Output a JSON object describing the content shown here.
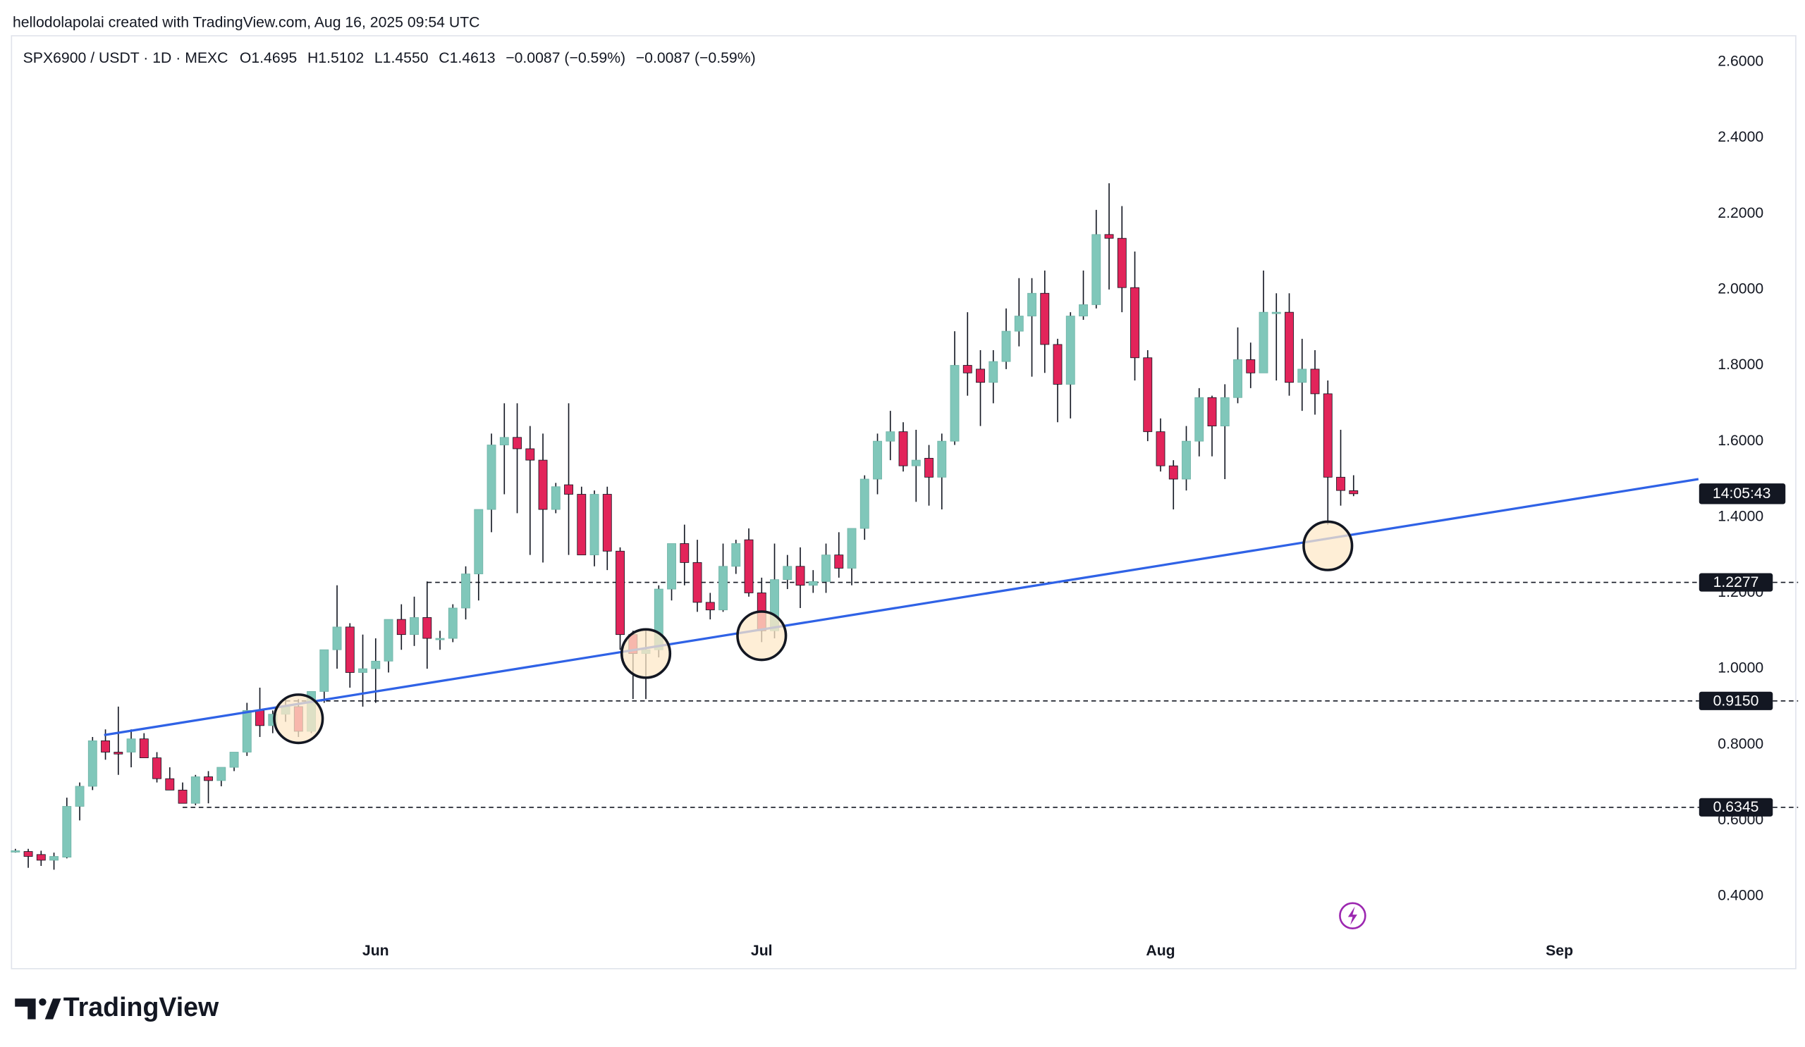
{
  "attribution": "hellodolapolai created with TradingView.com, Aug 16, 2025 09:54 UTC",
  "brand": "TradingView",
  "chart_data": {
    "type": "candlestick",
    "title": "SPX6900 / USDT · 1D · MEXC",
    "legend": [
      "O1.4695",
      "H1.5102",
      "L1.4550",
      "C1.4613",
      "−0.0087 (−0.59%)",
      "−0.0087 (−0.59%)"
    ],
    "up_color": "#80c7ba",
    "down_color": "#e2245a",
    "categories": [
      null,
      null,
      null,
      null,
      null,
      null,
      null,
      null,
      null,
      null,
      null,
      null,
      null,
      null,
      null,
      null,
      null,
      null,
      null,
      null,
      null,
      null,
      null,
      null,
      null,
      null,
      null,
      null,
      null,
      null,
      null,
      null,
      null,
      null,
      null,
      null,
      null,
      null,
      null,
      null,
      null,
      null,
      null,
      null,
      null,
      null,
      null,
      null,
      null,
      null,
      null,
      null,
      null,
      null,
      null,
      null,
      null,
      null,
      null,
      null,
      null,
      null,
      null,
      null,
      null,
      null,
      null,
      null,
      null,
      null,
      null,
      null,
      null,
      null,
      null,
      null,
      null,
      null,
      null,
      null,
      null,
      null,
      null,
      null,
      null,
      null,
      null,
      null,
      null,
      null,
      null,
      null,
      null,
      null,
      null,
      null,
      null,
      null,
      null,
      null,
      null,
      null,
      null,
      null,
      null
    ],
    "open": [
      0.52,
      0.518,
      0.51,
      0.495,
      0.503,
      0.637,
      0.69,
      0.81,
      0.78,
      0.78,
      0.815,
      0.765,
      0.71,
      0.68,
      0.645,
      0.715,
      0.705,
      0.74,
      0.78,
      0.89,
      0.85,
      0.88,
      0.9,
      0.835,
      0.94,
      1.05,
      1.11,
      0.99,
      1.0,
      1.02,
      1.13,
      1.09,
      1.135,
      1.08,
      1.08,
      1.16,
      1.25,
      1.42,
      1.59,
      1.61,
      1.58,
      1.55,
      1.42,
      1.485,
      1.46,
      1.3,
      1.46,
      1.31,
      1.09,
      1.04,
      1.05,
      1.21,
      1.33,
      1.28,
      1.175,
      1.155,
      1.27,
      1.34,
      1.2,
      1.1,
      1.235,
      1.27,
      1.22,
      1.23,
      1.3,
      1.265,
      1.37,
      1.5,
      1.6,
      1.625,
      1.535,
      1.555,
      1.505,
      1.6,
      1.8,
      1.79,
      1.755,
      1.81,
      1.89,
      1.93,
      1.99,
      1.855,
      1.75,
      1.93,
      1.96,
      2.145,
      2.135,
      2.005,
      1.82,
      1.625,
      1.535,
      1.5,
      1.6,
      1.715,
      1.64,
      1.715,
      1.815,
      1.78,
      1.94,
      1.94,
      1.755,
      1.79,
      1.725,
      1.505,
      1.4695
    ],
    "high": [
      0.525,
      0.525,
      0.52,
      0.515,
      0.66,
      0.7,
      0.82,
      0.84,
      0.9,
      0.84,
      0.83,
      0.78,
      0.74,
      0.7,
      0.72,
      0.73,
      0.74,
      0.78,
      0.91,
      0.95,
      0.89,
      0.92,
      0.92,
      0.94,
      1.05,
      1.22,
      1.12,
      1.09,
      1.08,
      1.12,
      1.17,
      1.19,
      1.23,
      1.1,
      1.17,
      1.27,
      1.42,
      1.62,
      1.7,
      1.7,
      1.64,
      1.62,
      1.49,
      1.7,
      1.48,
      1.47,
      1.48,
      1.32,
      1.1,
      1.1,
      1.22,
      1.33,
      1.38,
      1.34,
      1.2,
      1.33,
      1.34,
      1.37,
      1.24,
      1.33,
      1.3,
      1.32,
      1.26,
      1.33,
      1.36,
      1.37,
      1.51,
      1.62,
      1.68,
      1.65,
      1.63,
      1.59,
      1.62,
      1.89,
      1.94,
      1.84,
      1.84,
      1.95,
      2.03,
      2.03,
      2.05,
      1.87,
      1.94,
      2.05,
      2.21,
      2.28,
      2.22,
      2.1,
      1.84,
      1.66,
      1.55,
      1.64,
      1.74,
      1.72,
      1.75,
      1.9,
      1.86,
      2.05,
      1.99,
      1.99,
      1.87,
      1.84,
      1.76,
      1.63,
      1.5102
    ],
    "low": [
      0.515,
      0.475,
      0.48,
      0.47,
      0.5,
      0.6,
      0.68,
      0.76,
      0.72,
      0.74,
      0.77,
      0.7,
      0.68,
      0.645,
      0.64,
      0.645,
      0.69,
      0.73,
      0.77,
      0.82,
      0.83,
      0.86,
      0.82,
      0.83,
      0.91,
      1.0,
      0.95,
      0.9,
      0.91,
      0.99,
      1.05,
      1.06,
      1.0,
      1.05,
      1.07,
      1.13,
      1.18,
      1.36,
      1.46,
      1.41,
      1.3,
      1.28,
      1.41,
      1.3,
      1.31,
      1.27,
      1.26,
      1.05,
      0.92,
      0.92,
      1.03,
      1.18,
      1.22,
      1.15,
      1.13,
      1.15,
      1.25,
      1.19,
      1.07,
      1.08,
      1.21,
      1.16,
      1.2,
      1.2,
      1.24,
      1.22,
      1.34,
      1.46,
      1.55,
      1.52,
      1.44,
      1.43,
      1.42,
      1.59,
      1.72,
      1.64,
      1.7,
      1.79,
      1.85,
      1.77,
      1.78,
      1.65,
      1.66,
      1.92,
      1.95,
      2.0,
      1.94,
      1.76,
      1.6,
      1.52,
      1.42,
      1.47,
      1.56,
      1.56,
      1.5,
      1.7,
      1.74,
      1.78,
      1.76,
      1.72,
      1.68,
      1.67,
      1.38,
      1.43,
      1.455
    ],
    "close": [
      0.52,
      0.505,
      0.495,
      0.505,
      0.637,
      0.69,
      0.81,
      0.78,
      0.775,
      0.815,
      0.765,
      0.71,
      0.68,
      0.645,
      0.715,
      0.705,
      0.74,
      0.78,
      0.89,
      0.85,
      0.88,
      0.9,
      0.835,
      0.94,
      1.05,
      1.11,
      0.99,
      1.0,
      1.02,
      1.13,
      1.09,
      1.135,
      1.08,
      1.08,
      1.16,
      1.25,
      1.42,
      1.59,
      1.61,
      1.58,
      1.55,
      1.42,
      1.48,
      1.46,
      1.3,
      1.46,
      1.31,
      1.09,
      1.04,
      1.05,
      1.21,
      1.33,
      1.28,
      1.175,
      1.155,
      1.27,
      1.33,
      1.2,
      1.1,
      1.235,
      1.27,
      1.22,
      1.23,
      1.3,
      1.265,
      1.37,
      1.5,
      1.6,
      1.625,
      1.535,
      1.55,
      1.505,
      1.6,
      1.8,
      1.78,
      1.755,
      1.81,
      1.89,
      1.93,
      1.99,
      1.855,
      1.75,
      1.93,
      1.96,
      2.145,
      2.135,
      2.005,
      1.82,
      1.625,
      1.535,
      1.5,
      1.6,
      1.715,
      1.64,
      1.715,
      1.815,
      1.78,
      1.94,
      1.94,
      1.755,
      1.79,
      1.725,
      1.505,
      1.47,
      1.4613
    ],
    "xlim": [
      -0.3,
      129.6
    ],
    "ylim": [
      0.3,
      2.66
    ],
    "xticks": [
      {
        "value": 28,
        "label": "Jun"
      },
      {
        "value": 58,
        "label": "Jul"
      },
      {
        "value": 89,
        "label": "Aug"
      },
      {
        "value": 120,
        "label": "Sep"
      }
    ],
    "yticks": [
      {
        "value": 0.4,
        "label": "0.4000"
      },
      {
        "value": 0.6,
        "label": "0.6000"
      },
      {
        "value": 0.8,
        "label": "0.8000"
      },
      {
        "value": 1.0,
        "label": "1.0000"
      },
      {
        "value": 1.2,
        "label": "1.2000"
      },
      {
        "value": 1.4,
        "label": "1.4000"
      },
      {
        "value": 1.6,
        "label": "1.6000"
      },
      {
        "value": 1.8,
        "label": "1.8000"
      },
      {
        "value": 2.0,
        "label": "2.0000"
      },
      {
        "value": 2.2,
        "label": "2.2000"
      },
      {
        "value": 2.4,
        "label": "2.4000"
      },
      {
        "value": 2.6,
        "label": "2.6000"
      }
    ],
    "grid": false,
    "trendline": {
      "color": "#2f62e6",
      "x": [
        6.9,
        130.8
      ],
      "y": [
        0.825,
        1.5
      ]
    },
    "levels": [
      {
        "price": 1.2277,
        "from": 32
      },
      {
        "price": {
          "value": 0.915,
          "label": "0.9150"
        },
        "from": 21
      },
      {
        "price": 0.6345,
        "from": 13
      }
    ],
    "highlights": {
      "color": "#fde8c8",
      "x": [
        22,
        49,
        58,
        102
      ],
      "y": [
        0.868,
        1.04,
        1.087,
        1.324
      ]
    },
    "countdown": "14:05:43"
  }
}
